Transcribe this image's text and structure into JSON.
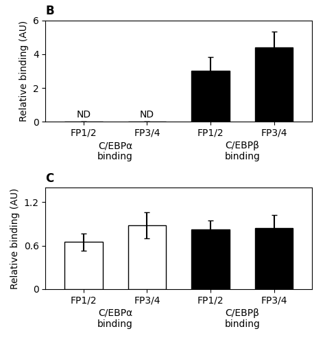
{
  "chart_data": [
    {
      "type": "bar",
      "title": "B",
      "categories": [
        "FP1/2",
        "FP3/4",
        "FP1/2",
        "FP3/4"
      ],
      "values": [
        0.0,
        0.0,
        3.0,
        4.4
      ],
      "errors": [
        0.0,
        0.0,
        0.85,
        0.95
      ],
      "value_labels": [
        "ND",
        "ND",
        null,
        null
      ],
      "colors": [
        "black",
        "black",
        "black",
        "black"
      ],
      "ylabel": "Relative binding (AU)",
      "ylim": [
        0,
        6
      ],
      "yticks": [
        0,
        2,
        4,
        6
      ],
      "annotations": [
        "C/EBPα\nbinding",
        "C/EBPβ\nbinding"
      ],
      "grid": false
    },
    {
      "type": "bar",
      "title": "C",
      "categories": [
        "FP1/2",
        "FP3/4",
        "FP1/2",
        "FP3/4"
      ],
      "values": [
        0.65,
        0.88,
        0.82,
        0.84
      ],
      "errors": [
        0.12,
        0.18,
        0.13,
        0.18
      ],
      "colors": [
        "white",
        "white",
        "black",
        "black"
      ],
      "ylabel": "Relative binding (AU)",
      "ylim": [
        0,
        1.4
      ],
      "yticks": [
        0,
        0.6,
        1.2
      ],
      "annotations": [
        "C/EBPα\nbinding",
        "C/EBPβ\nbinding"
      ],
      "grid": false
    }
  ]
}
